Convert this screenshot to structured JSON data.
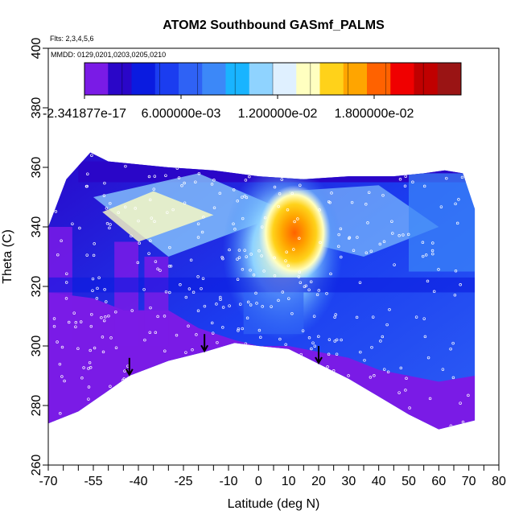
{
  "chart_data": {
    "type": "heatmap",
    "title": "ATOM2 Southbound GASmf_PALMS",
    "flights_note": "Flts: 2,3,4,5,6",
    "dates_note": "MMDD: 0129,0201,0203,0205,0210",
    "xlabel": "Latitude (deg N)",
    "ylabel": "Theta (C)",
    "xlim": [
      -70,
      80
    ],
    "ylim": [
      260,
      400
    ],
    "x_ticks": [
      "-70",
      "-55",
      "-40",
      "-25",
      "-10",
      "0",
      "10",
      "20",
      "30",
      "40",
      "50",
      "60",
      "70",
      "80"
    ],
    "x_tick_values": [
      -70,
      -55,
      -40,
      -25,
      -10,
      0,
      10,
      20,
      30,
      40,
      50,
      60,
      70,
      80
    ],
    "x_minor_ticks": [
      -65,
      -60,
      -50,
      -45,
      -35,
      -30,
      -20,
      -15,
      -5,
      5,
      15,
      25,
      35,
      45,
      55,
      65,
      75
    ],
    "y_ticks": [
      "260",
      "280",
      "300",
      "320",
      "340",
      "360",
      "380",
      "400"
    ],
    "y_tick_values": [
      260,
      280,
      300,
      320,
      340,
      360,
      380,
      400
    ],
    "colorbar": {
      "min": -2.341877e-17,
      "max": 0.0234,
      "tick_labels": [
        "-2.341877e-17",
        "6.000000e-03",
        "1.200000e-02",
        "1.800000e-02"
      ],
      "tick_values": [
        0,
        0.006,
        0.012,
        0.018
      ],
      "colors": [
        "#7a1be6",
        "#2a06c8",
        "#0a1be0",
        "#1b3df0",
        "#2f62f5",
        "#3c88f8",
        "#19b4ff",
        "#8fd3ff",
        "#dff0ff",
        "#ffffc0",
        "#ffd21a",
        "#ffa500",
        "#ff6200",
        "#f00000",
        "#c00000",
        "#9a1414"
      ]
    },
    "arrows_lat_theta": [
      [
        -43,
        296
      ],
      [
        -18,
        304
      ],
      [
        20,
        300
      ]
    ],
    "boundary_bottom": [
      [
        -70,
        274
      ],
      [
        -60,
        278
      ],
      [
        -50,
        285
      ],
      [
        -43,
        290
      ],
      [
        -30,
        295
      ],
      [
        -18,
        298
      ],
      [
        -8,
        301
      ],
      [
        0,
        300
      ],
      [
        10,
        299
      ],
      [
        20,
        294
      ],
      [
        30,
        289
      ],
      [
        40,
        283
      ],
      [
        50,
        277
      ],
      [
        60,
        272
      ],
      [
        72,
        275
      ]
    ],
    "boundary_top": [
      [
        -70,
        340
      ],
      [
        -64,
        356
      ],
      [
        -56,
        365
      ],
      [
        -50,
        362
      ],
      [
        -30,
        360
      ],
      [
        -15,
        359
      ],
      [
        0,
        357
      ],
      [
        15,
        356
      ],
      [
        30,
        357
      ],
      [
        45,
        357
      ],
      [
        55,
        358
      ],
      [
        62,
        359
      ],
      [
        68,
        358
      ],
      [
        72,
        346
      ]
    ]
  }
}
